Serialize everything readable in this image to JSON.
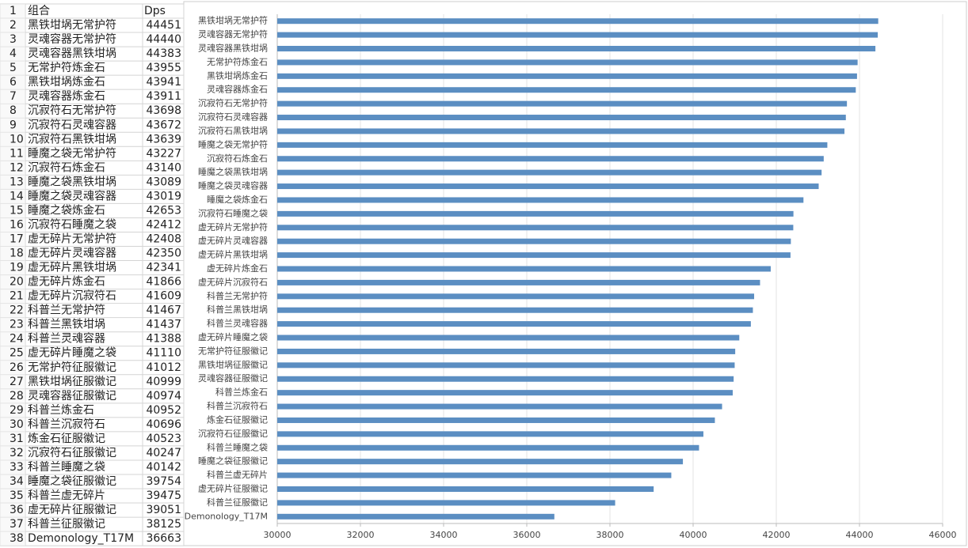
{
  "table": {
    "row_numbers": [
      1,
      2,
      3,
      4,
      5,
      6,
      7,
      8,
      9,
      10,
      11,
      12,
      13,
      14,
      15,
      16,
      17,
      18,
      19,
      20,
      21,
      22,
      23,
      24,
      25,
      26,
      27,
      28,
      29,
      30,
      31,
      32,
      33,
      34,
      35,
      36,
      37,
      38
    ],
    "header": [
      "组合",
      "Dps"
    ],
    "rows": [
      [
        "黑铁坩埚无常护符",
        44451
      ],
      [
        "灵魂容器无常护符",
        44440
      ],
      [
        "灵魂容器黑铁坩埚",
        44383
      ],
      [
        "无常护符炼金石",
        43955
      ],
      [
        "黑铁坩埚炼金石",
        43941
      ],
      [
        "灵魂容器炼金石",
        43911
      ],
      [
        "沉寂符石无常护符",
        43698
      ],
      [
        "沉寂符石灵魂容器",
        43672
      ],
      [
        "沉寂符石黑铁坩埚",
        43639
      ],
      [
        "睡魔之袋无常护符",
        43227
      ],
      [
        "沉寂符石炼金石",
        43140
      ],
      [
        "睡魔之袋黑铁坩埚",
        43089
      ],
      [
        "睡魔之袋灵魂容器",
        43019
      ],
      [
        "睡魔之袋炼金石",
        42653
      ],
      [
        "沉寂符石睡魔之袋",
        42412
      ],
      [
        "虚无碎片无常护符",
        42408
      ],
      [
        "虚无碎片灵魂容器",
        42350
      ],
      [
        "虚无碎片黑铁坩埚",
        42341
      ],
      [
        "虚无碎片炼金石",
        41866
      ],
      [
        "虚无碎片沉寂符石",
        41609
      ],
      [
        "科普兰无常护符",
        41467
      ],
      [
        "科普兰黑铁坩埚",
        41437
      ],
      [
        "科普兰灵魂容器",
        41388
      ],
      [
        "虚无碎片睡魔之袋",
        41110
      ],
      [
        "无常护符征服徽记",
        41012
      ],
      [
        "黑铁坩埚征服徽记",
        40999
      ],
      [
        "灵魂容器征服徽记",
        40974
      ],
      [
        "科普兰炼金石",
        40952
      ],
      [
        "科普兰沉寂符石",
        40696
      ],
      [
        "炼金石征服徽记",
        40523
      ],
      [
        "沉寂符石征服徽记",
        40247
      ],
      [
        "科普兰睡魔之袋",
        40142
      ],
      [
        "睡魔之袋征服徽记",
        39754
      ],
      [
        "科普兰虚无碎片",
        39475
      ],
      [
        "虚无碎片征服徽记",
        39051
      ],
      [
        "科普兰征服徽记",
        38125
      ],
      [
        "Demonology_T17M",
        36663
      ]
    ]
  },
  "chart_data": {
    "type": "barh",
    "color": "#5b8ec2",
    "grid": true,
    "categories": [
      "黑铁坩埚无常护符",
      "灵魂容器无常护符",
      "灵魂容器黑铁坩埚",
      "无常护符炼金石",
      "黑铁坩埚炼金石",
      "灵魂容器炼金石",
      "沉寂符石无常护符",
      "沉寂符石灵魂容器",
      "沉寂符石黑铁坩埚",
      "睡魔之袋无常护符",
      "沉寂符石炼金石",
      "睡魔之袋黑铁坩埚",
      "睡魔之袋灵魂容器",
      "睡魔之袋炼金石",
      "沉寂符石睡魔之袋",
      "虚无碎片无常护符",
      "虚无碎片灵魂容器",
      "虚无碎片黑铁坩埚",
      "虚无碎片炼金石",
      "虚无碎片沉寂符石",
      "科普兰无常护符",
      "科普兰黑铁坩埚",
      "科普兰灵魂容器",
      "虚无碎片睡魔之袋",
      "无常护符征服徽记",
      "黑铁坩埚征服徽记",
      "灵魂容器征服徽记",
      "科普兰炼金石",
      "科普兰沉寂符石",
      "炼金石征服徽记",
      "沉寂符石征服徽记",
      "科普兰睡魔之袋",
      "睡魔之袋征服徽记",
      "科普兰虚无碎片",
      "虚无碎片征服徽记",
      "科普兰征服徽记",
      "Demonology_T17M"
    ],
    "values": [
      44451,
      44440,
      44383,
      43955,
      43941,
      43911,
      43698,
      43672,
      43639,
      43227,
      43140,
      43089,
      43019,
      42653,
      42412,
      42408,
      42350,
      42341,
      41866,
      41609,
      41467,
      41437,
      41388,
      41110,
      41012,
      40999,
      40974,
      40952,
      40696,
      40523,
      40247,
      40142,
      39754,
      39475,
      39051,
      38125,
      36663
    ],
    "xlim": [
      30000,
      46000
    ],
    "xticks": [
      30000,
      32000,
      34000,
      36000,
      38000,
      40000,
      42000,
      44000,
      46000
    ]
  }
}
